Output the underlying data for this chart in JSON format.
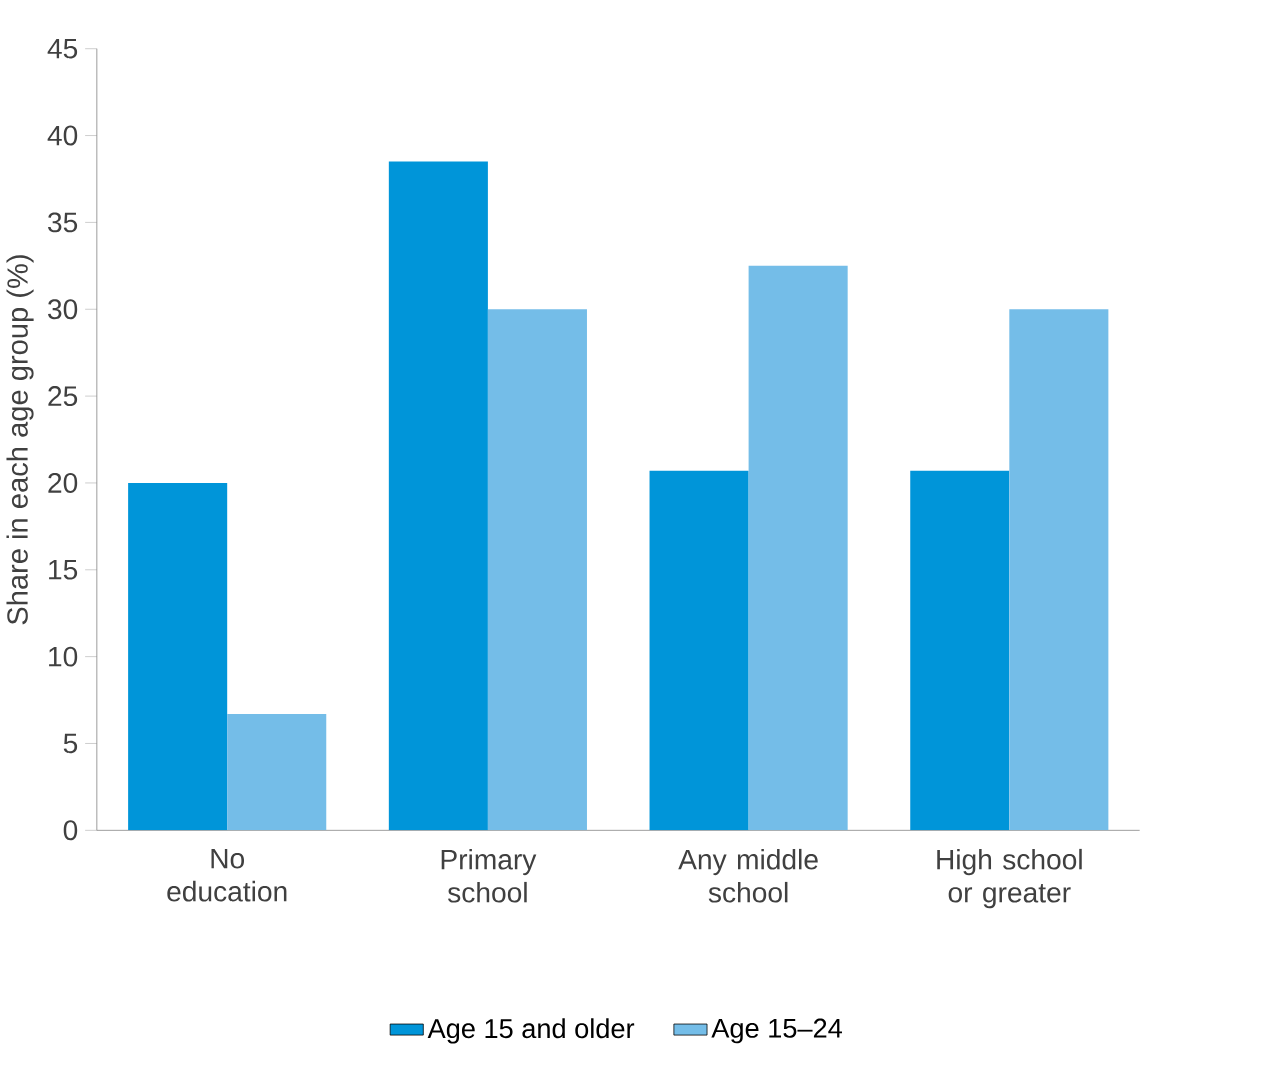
{
  "chart_data": {
    "type": "bar",
    "ylabel": "Share in each age group (%)",
    "categories": [
      "No education",
      "Primary school",
      "Any middle school",
      "High school or greater"
    ],
    "series": [
      {
        "name": "Age 15 and older",
        "color": "#0095d9",
        "values": [
          20,
          38.5,
          20.7,
          20.7
        ]
      },
      {
        "name": "Age 15–24",
        "color": "#74bde8",
        "values": [
          6.7,
          30,
          32.5,
          30
        ]
      }
    ],
    "ylim": [
      0,
      45
    ],
    "yticks": [
      0,
      5,
      10,
      15,
      20,
      25,
      30,
      35,
      40,
      45
    ],
    "grid": false,
    "legend": "bottom"
  }
}
